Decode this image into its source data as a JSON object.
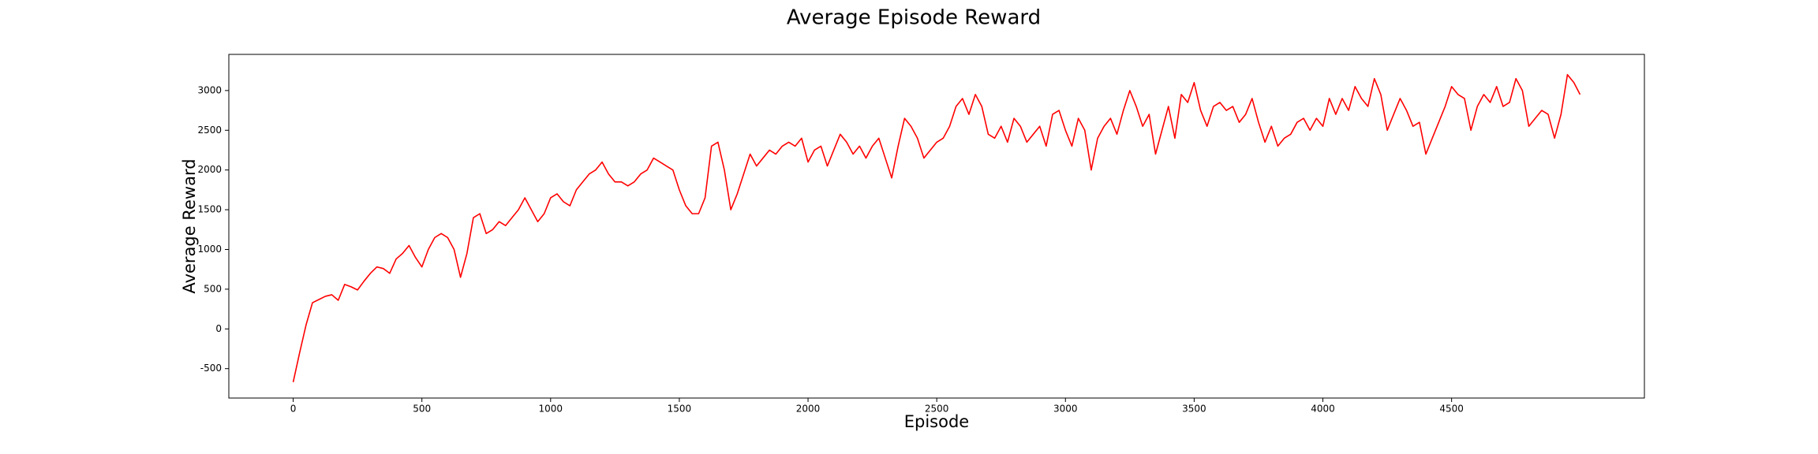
{
  "chart_data": {
    "type": "line",
    "title": "Average Episode Reward",
    "x_label": "Episode",
    "y_label": "Average Reward",
    "x": [
      0,
      25,
      50,
      75,
      100,
      125,
      150,
      175,
      200,
      225,
      250,
      275,
      300,
      325,
      350,
      375,
      400,
      425,
      450,
      475,
      500,
      525,
      550,
      575,
      600,
      625,
      650,
      675,
      700,
      725,
      750,
      775,
      800,
      825,
      850,
      875,
      900,
      925,
      950,
      975,
      1000,
      1025,
      1050,
      1075,
      1100,
      1125,
      1150,
      1175,
      1200,
      1225,
      1250,
      1275,
      1300,
      1325,
      1350,
      1375,
      1400,
      1425,
      1450,
      1475,
      1500,
      1525,
      1550,
      1575,
      1600,
      1625,
      1650,
      1675,
      1700,
      1725,
      1750,
      1775,
      1800,
      1825,
      1850,
      1875,
      1900,
      1925,
      1950,
      1975,
      2000,
      2025,
      2050,
      2075,
      2100,
      2125,
      2150,
      2175,
      2200,
      2225,
      2250,
      2275,
      2300,
      2325,
      2350,
      2375,
      2400,
      2425,
      2450,
      2475,
      2500,
      2525,
      2550,
      2575,
      2600,
      2625,
      2650,
      2675,
      2700,
      2725,
      2750,
      2775,
      2800,
      2825,
      2850,
      2875,
      2900,
      2925,
      2950,
      2975,
      3000,
      3025,
      3050,
      3075,
      3100,
      3125,
      3150,
      3175,
      3200,
      3225,
      3250,
      3275,
      3300,
      3325,
      3350,
      3375,
      3400,
      3425,
      3450,
      3475,
      3500,
      3525,
      3550,
      3575,
      3600,
      3625,
      3650,
      3675,
      3700,
      3725,
      3750,
      3775,
      3800,
      3825,
      3850,
      3875,
      3900,
      3925,
      3950,
      3975,
      4000,
      4025,
      4050,
      4075,
      4100,
      4125,
      4150,
      4175,
      4200,
      4225,
      4250,
      4275,
      4300,
      4325,
      4350,
      4375,
      4400,
      4425,
      4450,
      4475,
      4500,
      4525,
      4550,
      4575,
      4600,
      4625,
      4650,
      4675,
      4700,
      4725,
      4750,
      4775,
      4800,
      4825,
      4850,
      4875,
      4900,
      4925,
      4950,
      4975,
      4999
    ],
    "series": [
      {
        "color": "#ff0000",
        "values": [
          -670,
          -300,
          50,
          330,
          370,
          410,
          430,
          360,
          560,
          530,
          490,
          600,
          700,
          780,
          760,
          700,
          880,
          950,
          1050,
          900,
          780,
          1000,
          1150,
          1200,
          1150,
          1000,
          650,
          950,
          1400,
          1450,
          1200,
          1250,
          1350,
          1300,
          1400,
          1500,
          1650,
          1500,
          1350,
          1450,
          1650,
          1700,
          1600,
          1550,
          1750,
          1850,
          1950,
          2000,
          2100,
          1950,
          1850,
          1850,
          1800,
          1850,
          1950,
          2000,
          2150,
          2100,
          2050,
          2000,
          1750,
          1550,
          1450,
          1450,
          1650,
          2300,
          2350,
          2000,
          1500,
          1700,
          1950,
          2200,
          2050,
          2150,
          2250,
          2200,
          2300,
          2350,
          2300,
          2400,
          2100,
          2250,
          2300,
          2050,
          2250,
          2450,
          2350,
          2200,
          2300,
          2150,
          2300,
          2400,
          2150,
          1900,
          2300,
          2650,
          2550,
          2400,
          2150,
          2250,
          2350,
          2400,
          2550,
          2800,
          2900,
          2700,
          2950,
          2800,
          2450,
          2400,
          2550,
          2350,
          2650,
          2550,
          2350,
          2450,
          2550,
          2300,
          2700,
          2750,
          2500,
          2300,
          2650,
          2500,
          2000,
          2400,
          2550,
          2650,
          2450,
          2750,
          3000,
          2800,
          2550,
          2700,
          2200,
          2500,
          2800,
          2400,
          2950,
          2850,
          3100,
          2750,
          2550,
          2800,
          2850,
          2750,
          2800,
          2600,
          2700,
          2900,
          2600,
          2350,
          2550,
          2300,
          2400,
          2450,
          2600,
          2650,
          2500,
          2650,
          2550,
          2900,
          2700,
          2900,
          2750,
          3050,
          2900,
          2800,
          3150,
          2950,
          2500,
          2700,
          2900,
          2750,
          2550,
          2600,
          2200,
          2400,
          2600,
          2800,
          3050,
          2950,
          2900,
          2500,
          2800,
          2950,
          2850,
          3050,
          2800,
          2850,
          3150,
          3000,
          2550,
          2650,
          2750,
          2700,
          2400,
          2700,
          3200,
          3100,
          2950
        ]
      }
    ],
    "xlim": [
      -250,
      5249
    ],
    "ylim": [
      -870,
      3455
    ],
    "xticks": [
      0,
      500,
      1000,
      1500,
      2000,
      2500,
      3000,
      3500,
      4000,
      4500
    ],
    "yticks": [
      -500,
      0,
      500,
      1000,
      1500,
      2000,
      2500,
      3000
    ]
  }
}
